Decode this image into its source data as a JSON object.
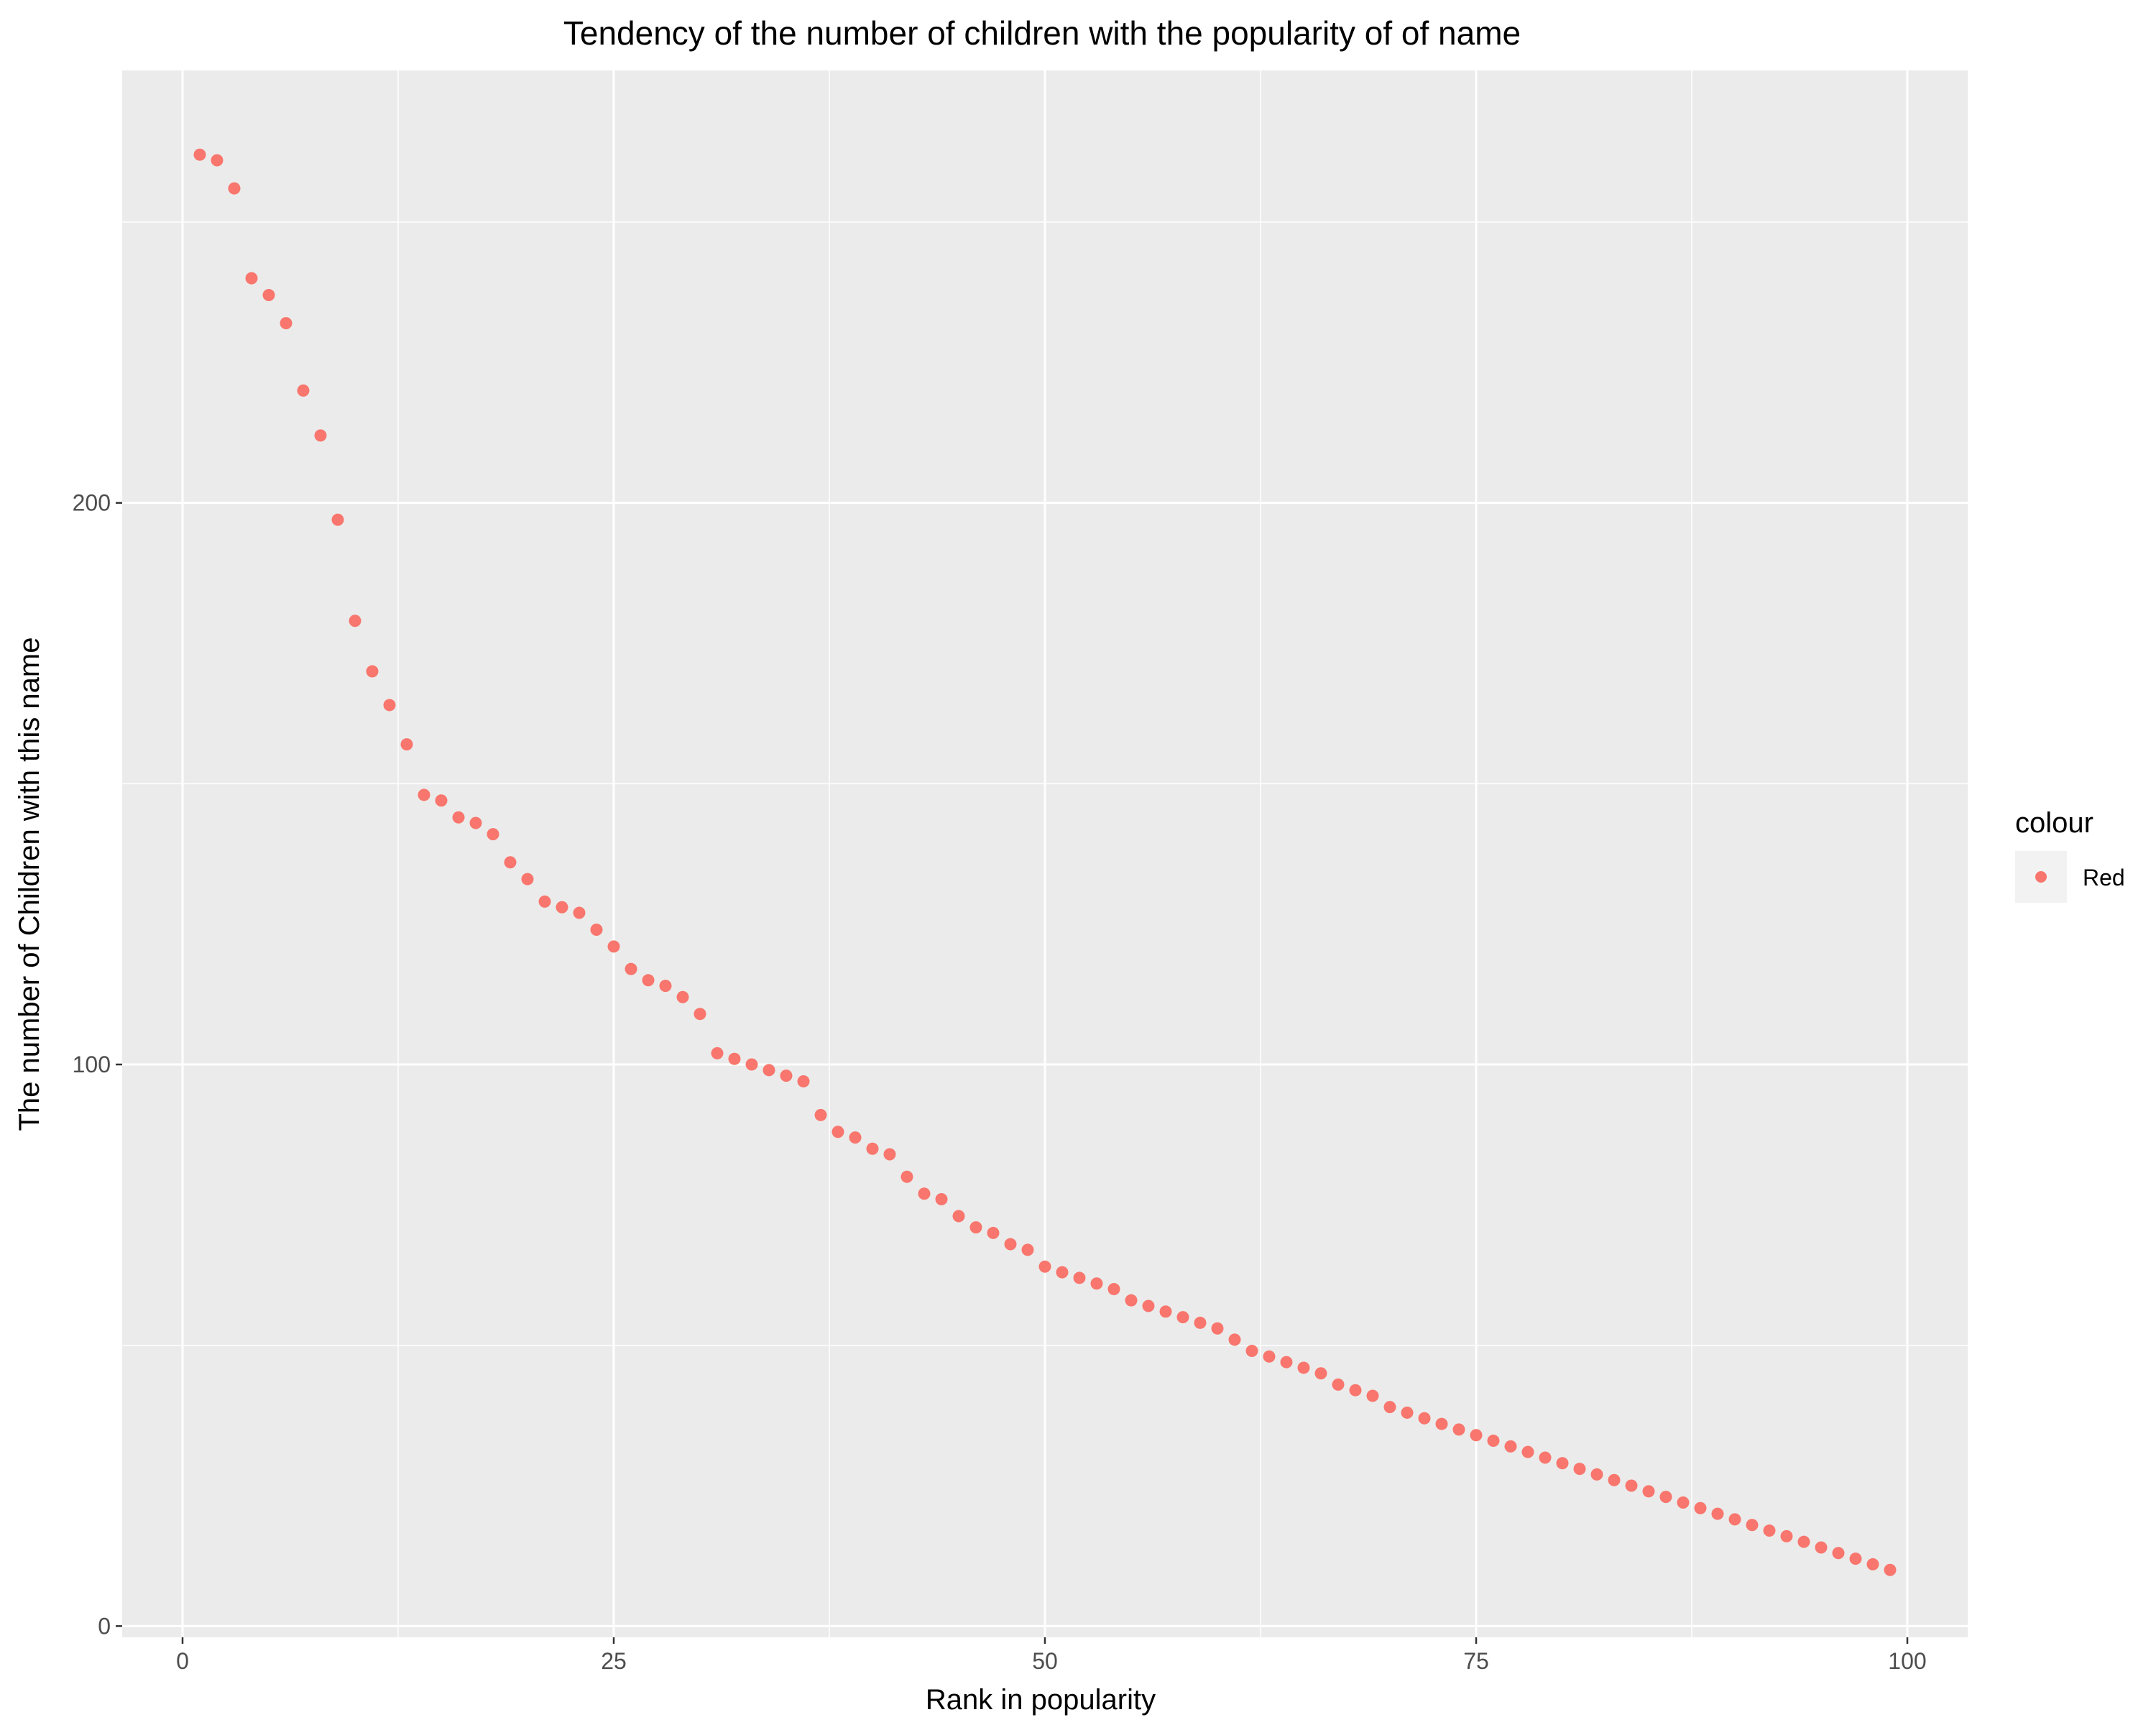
{
  "chart_data": {
    "type": "scatter",
    "title": "Tendency of the number of children with the popularity of of name",
    "xlabel": "Rank in popularity",
    "ylabel": "The number of Children with this name",
    "xlim": [
      -3.5,
      103.5
    ],
    "ylim": [
      -2,
      277
    ],
    "x_ticks": [
      0,
      25,
      50,
      75,
      100
    ],
    "x_tick_labels": [
      "0",
      "25",
      "50",
      "75",
      "100"
    ],
    "y_ticks": [
      0,
      100,
      200
    ],
    "y_tick_labels": [
      "0",
      "100",
      "200"
    ],
    "grid": true,
    "legend": {
      "title": "colour",
      "position": "right",
      "entries": [
        {
          "label": "Red",
          "color": "#F8766D"
        }
      ]
    },
    "series": [
      {
        "name": "Red",
        "color": "#F8766D",
        "x": [
          1,
          2,
          3,
          4,
          5,
          6,
          7,
          8,
          9,
          10,
          11,
          12,
          13,
          14,
          15,
          16,
          17,
          18,
          19,
          20,
          21,
          22,
          23,
          24,
          25,
          26,
          27,
          28,
          29,
          30,
          31,
          32,
          33,
          34,
          35,
          36,
          37,
          38,
          39,
          40,
          41,
          42,
          43,
          44,
          45,
          46,
          47,
          48,
          49,
          50,
          51,
          52,
          53,
          54,
          55,
          56,
          57,
          58,
          59,
          60,
          61,
          62,
          63,
          64,
          65,
          66,
          67,
          68,
          69,
          70,
          71,
          72,
          73,
          74,
          75,
          76,
          77,
          78,
          79,
          80,
          81,
          82,
          83,
          84,
          85,
          86,
          87,
          88,
          89,
          90,
          91,
          92,
          93,
          94,
          95,
          96,
          97,
          98,
          99
        ],
        "y": [
          262,
          261,
          256,
          240,
          237,
          232,
          220,
          212,
          197,
          179,
          170,
          164,
          157,
          148,
          147,
          144,
          143,
          141,
          136,
          133,
          129,
          128,
          127,
          124,
          121,
          117,
          115,
          114,
          112,
          109,
          102,
          101,
          100,
          99,
          98,
          97,
          91,
          88,
          87,
          85,
          84,
          80,
          77,
          76,
          73,
          71,
          70,
          68,
          67,
          64,
          63,
          62,
          61,
          60,
          58,
          57,
          56,
          55,
          54,
          53,
          51,
          49,
          48,
          47,
          46,
          45,
          43,
          42,
          41,
          39,
          38,
          37,
          36,
          35,
          34,
          33,
          32,
          31,
          30,
          29,
          28,
          27,
          26,
          25,
          24,
          23,
          22,
          21,
          20,
          19,
          18,
          17,
          16,
          15,
          14,
          13,
          12,
          11,
          10
        ]
      }
    ]
  }
}
